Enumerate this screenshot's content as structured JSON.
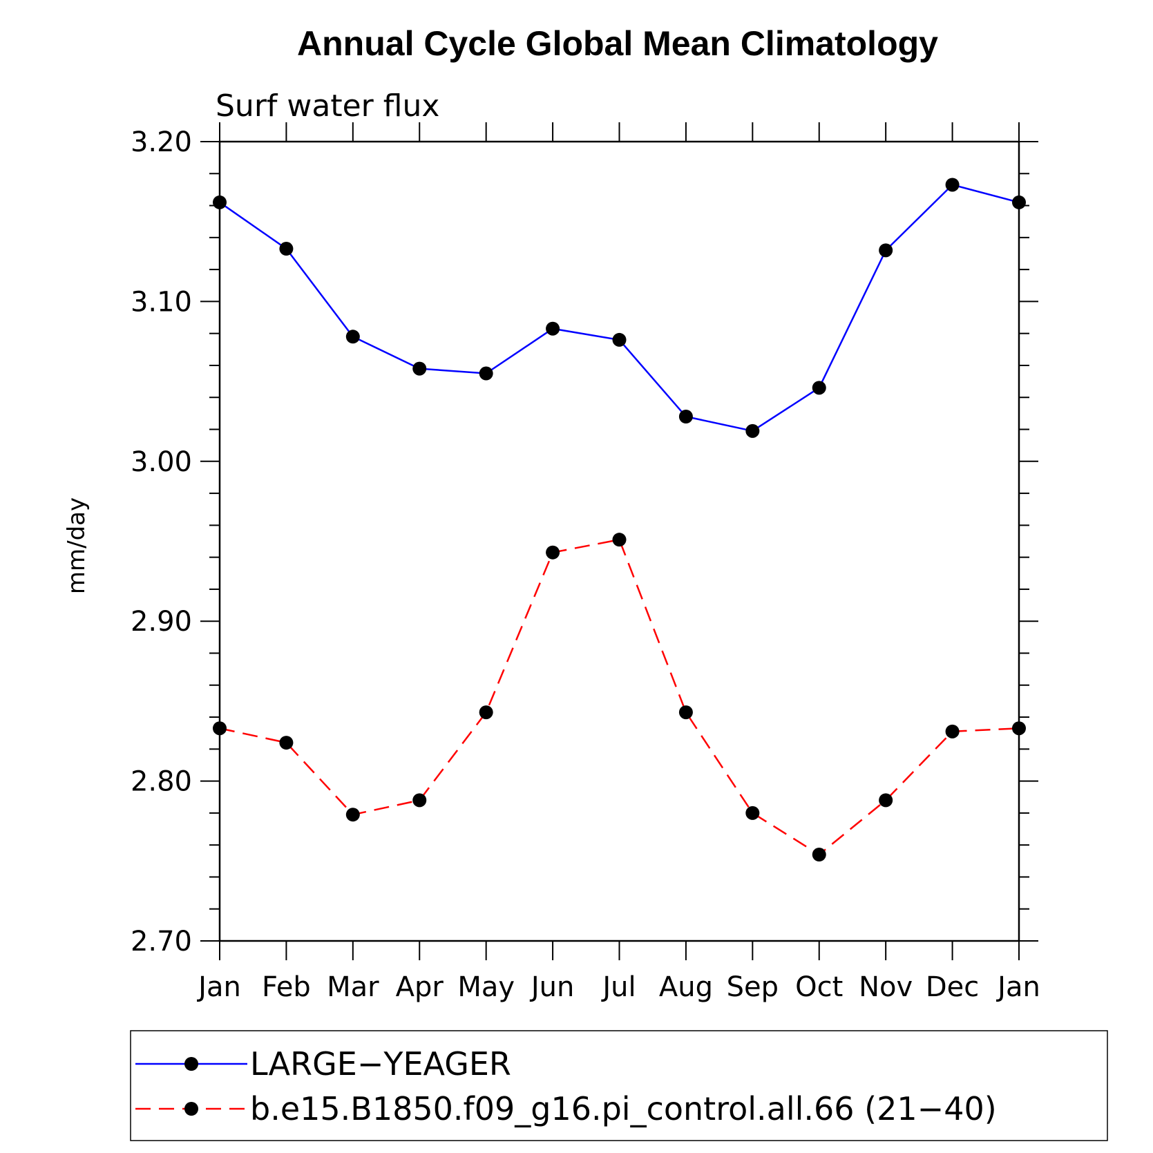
{
  "chart_data": {
    "type": "line",
    "title": "Annual Cycle Global Mean Climatology",
    "subtitle": "Surf water flux",
    "ylabel": "mm/day",
    "xlabel": "",
    "categories": [
      "Jan",
      "Feb",
      "Mar",
      "Apr",
      "May",
      "Jun",
      "Jul",
      "Aug",
      "Sep",
      "Oct",
      "Nov",
      "Dec",
      "Jan"
    ],
    "ylim": [
      2.7,
      3.2
    ],
    "yticks": [
      "2.70",
      "2.80",
      "2.90",
      "3.00",
      "3.10",
      "3.20"
    ],
    "ytick_values": [
      2.7,
      2.8,
      2.9,
      3.0,
      3.1,
      3.2
    ],
    "grid": false,
    "legend_position": "bottom",
    "series": [
      {
        "name": "LARGE−YEAGER",
        "color": "#0000ff",
        "dash": "solid",
        "marker": "filled-circle",
        "values": [
          3.162,
          3.133,
          3.078,
          3.058,
          3.055,
          3.083,
          3.076,
          3.028,
          3.019,
          3.046,
          3.132,
          3.173,
          3.162
        ]
      },
      {
        "name": "b.e15.B1850.f09_g16.pi_control.all.66 (21−40)",
        "color": "#ff0000",
        "dash": "dashed",
        "marker": "filled-circle",
        "values": [
          2.833,
          2.824,
          2.779,
          2.788,
          2.843,
          2.943,
          2.951,
          2.843,
          2.78,
          2.754,
          2.788,
          2.831,
          2.833
        ]
      }
    ]
  }
}
